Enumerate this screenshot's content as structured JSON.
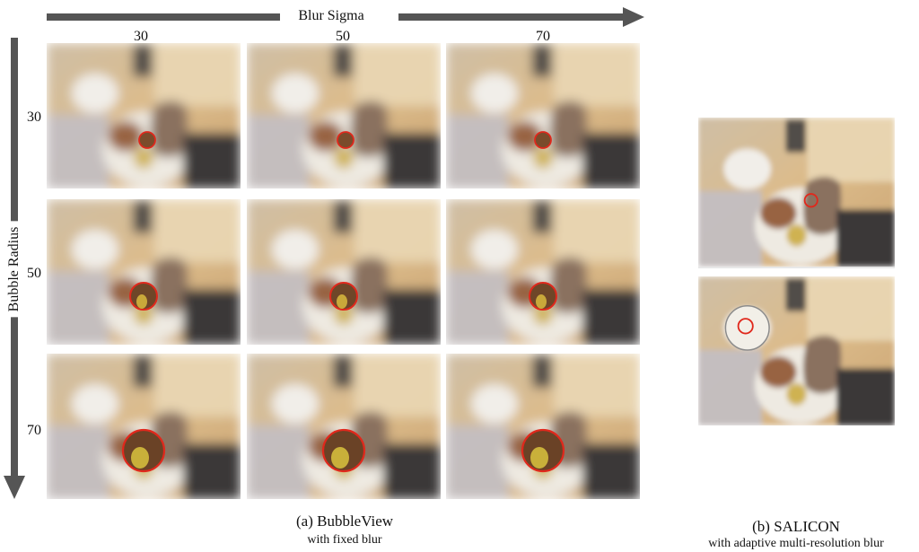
{
  "axes": {
    "top_label": "Blur Sigma",
    "left_label": "Bubble Radius",
    "column_labels": [
      "30",
      "50",
      "70"
    ],
    "row_labels": [
      "30",
      "50",
      "70"
    ]
  },
  "captions": {
    "bubbleview_title": "(a) BubbleView",
    "bubbleview_sub": "with fixed blur",
    "salicon_title": "(b) SALICON",
    "salicon_sub": "with adaptive multi-resolution blur"
  },
  "colors": {
    "arrow": "#555555",
    "bubble_circle": "#e0281c"
  },
  "grid_panels": [
    {
      "row_radius": "30",
      "col_sigma": "30"
    },
    {
      "row_radius": "30",
      "col_sigma": "50"
    },
    {
      "row_radius": "30",
      "col_sigma": "70"
    },
    {
      "row_radius": "50",
      "col_sigma": "30"
    },
    {
      "row_radius": "50",
      "col_sigma": "50"
    },
    {
      "row_radius": "50",
      "col_sigma": "70"
    },
    {
      "row_radius": "70",
      "col_sigma": "30"
    },
    {
      "row_radius": "70",
      "col_sigma": "50"
    },
    {
      "row_radius": "70",
      "col_sigma": "70"
    }
  ],
  "salicon_panels": [
    {
      "focus": "bread"
    },
    {
      "focus": "glass"
    }
  ]
}
